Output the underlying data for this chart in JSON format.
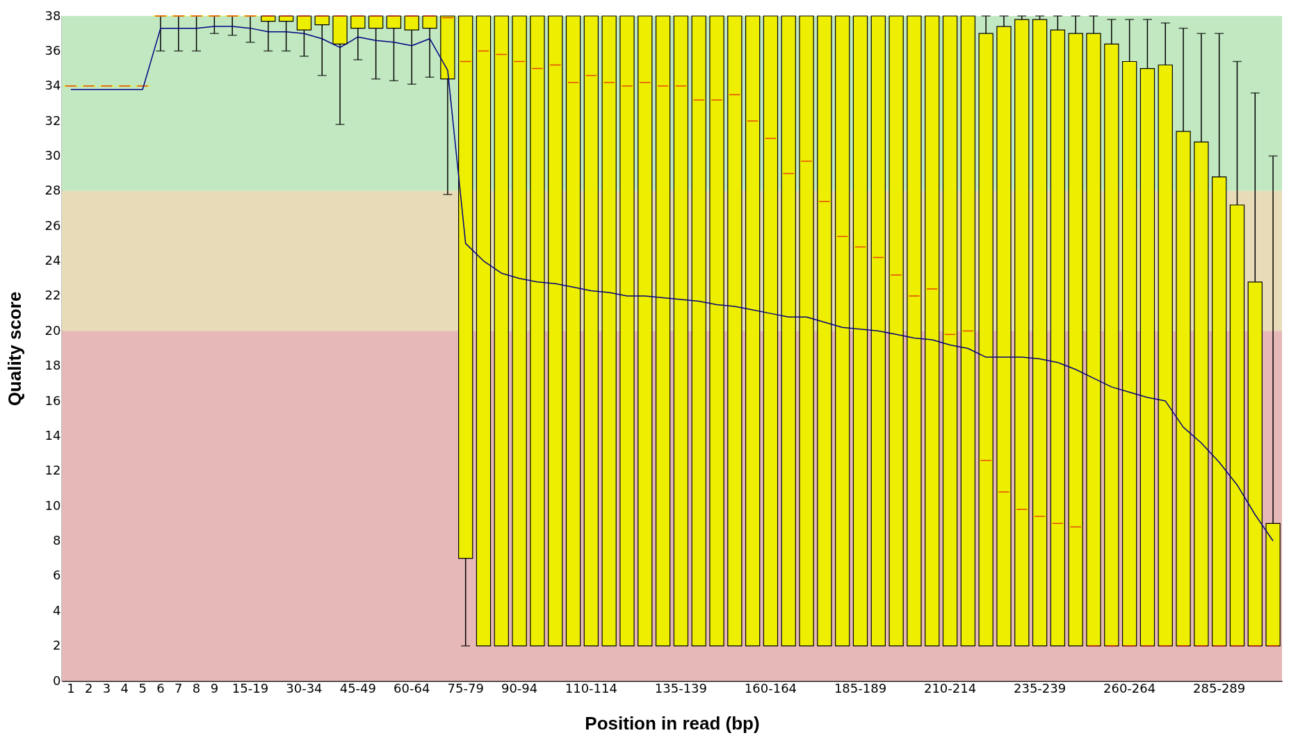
{
  "chart_data": {
    "type": "box",
    "xlabel": "Position in read (bp)",
    "ylabel": "Quality score",
    "categories": [
      "1",
      "2",
      "3",
      "4",
      "5",
      "6",
      "7",
      "8",
      "9",
      null,
      "15-19",
      null,
      null,
      "30-34",
      null,
      null,
      "45-49",
      null,
      null,
      "60-64",
      null,
      null,
      "75-79",
      null,
      null,
      "90-94",
      null,
      null,
      null,
      "110-114",
      null,
      null,
      null,
      null,
      "135-139",
      null,
      null,
      null,
      null,
      "160-164",
      null,
      null,
      null,
      null,
      "185-189",
      null,
      null,
      null,
      null,
      "210-214",
      null,
      null,
      null,
      null,
      "235-239",
      null,
      null,
      null,
      null,
      "260-264",
      null,
      null,
      null,
      null,
      "285-289",
      null,
      null,
      null
    ],
    "ylim": [
      0,
      38
    ],
    "yticks": [
      0,
      2,
      4,
      6,
      8,
      10,
      12,
      14,
      16,
      18,
      20,
      22,
      24,
      26,
      28,
      30,
      32,
      34,
      36,
      38
    ],
    "bands": [
      {
        "axis": "y",
        "from": 28,
        "to": 38,
        "color": "#c2e8c2"
      },
      {
        "axis": "y",
        "from": 20,
        "to": 28,
        "color": "#e8dcb8"
      },
      {
        "axis": "y",
        "from": 0,
        "to": 20,
        "color": "#e6b8b8"
      }
    ],
    "series": [
      {
        "type": "box",
        "color": "#eeee00",
        "boxes": [
          {
            "low": 34,
            "q1": 34,
            "median": 34,
            "q3": 34,
            "high": 34
          },
          {
            "low": 34,
            "q1": 34,
            "median": 34,
            "q3": 34,
            "high": 34
          },
          {
            "low": 34,
            "q1": 34,
            "median": 34,
            "q3": 34,
            "high": 34
          },
          {
            "low": 34,
            "q1": 34,
            "median": 34,
            "q3": 34,
            "high": 34
          },
          {
            "low": 34,
            "q1": 34,
            "median": 34,
            "q3": 34,
            "high": 34
          },
          {
            "low": 36,
            "q1": 38,
            "median": 38,
            "q3": 38,
            "high": 38
          },
          {
            "low": 36,
            "q1": 38,
            "median": 38,
            "q3": 38,
            "high": 38
          },
          {
            "low": 36,
            "q1": 38,
            "median": 38,
            "q3": 38,
            "high": 38
          },
          {
            "low": 37,
            "q1": 38,
            "median": 38,
            "q3": 38,
            "high": 38
          },
          {
            "low": 36.9,
            "q1": 38,
            "median": 38,
            "q3": 38,
            "high": 38
          },
          {
            "low": 36.5,
            "q1": 38,
            "median": 38,
            "q3": 38,
            "high": 38
          },
          {
            "low": 36,
            "q1": 37.7,
            "median": 38,
            "q3": 38,
            "high": 38
          },
          {
            "low": 36,
            "q1": 37.7,
            "median": 38,
            "q3": 38,
            "high": 38
          },
          {
            "low": 35.7,
            "q1": 37.2,
            "median": 38,
            "q3": 38,
            "high": 38
          },
          {
            "low": 34.6,
            "q1": 37.5,
            "median": 38,
            "q3": 38,
            "high": 38
          },
          {
            "low": 31.8,
            "q1": 36.4,
            "median": 38,
            "q3": 38,
            "high": 38
          },
          {
            "low": 35.5,
            "q1": 37.3,
            "median": 38,
            "q3": 38,
            "high": 38
          },
          {
            "low": 34.4,
            "q1": 37.3,
            "median": 38,
            "q3": 38,
            "high": 38
          },
          {
            "low": 34.3,
            "q1": 37.3,
            "median": 38,
            "q3": 38,
            "high": 38
          },
          {
            "low": 34.1,
            "q1": 37.2,
            "median": 38,
            "q3": 38,
            "high": 38
          },
          {
            "low": 34.5,
            "q1": 37.3,
            "median": 38,
            "q3": 38,
            "high": 38
          },
          {
            "low": 27.8,
            "q1": 34.4,
            "median": 37.9,
            "q3": 38,
            "high": 38
          },
          {
            "low": 2,
            "q1": 7,
            "median": 35.4,
            "q3": 38,
            "high": 38
          },
          {
            "low": 2,
            "q1": 2,
            "median": 36.0,
            "q3": 38,
            "high": 38
          },
          {
            "low": 2,
            "q1": 2,
            "median": 35.8,
            "q3": 38,
            "high": 38
          },
          {
            "low": 2,
            "q1": 2,
            "median": 35.4,
            "q3": 38,
            "high": 38
          },
          {
            "low": 2,
            "q1": 2,
            "median": 35.0,
            "q3": 38,
            "high": 38
          },
          {
            "low": 2,
            "q1": 2,
            "median": 35.2,
            "q3": 38,
            "high": 38
          },
          {
            "low": 2,
            "q1": 2,
            "median": 34.2,
            "q3": 38,
            "high": 38
          },
          {
            "low": 2,
            "q1": 2,
            "median": 34.6,
            "q3": 38,
            "high": 38
          },
          {
            "low": 2,
            "q1": 2,
            "median": 34.2,
            "q3": 38,
            "high": 38
          },
          {
            "low": 2,
            "q1": 2,
            "median": 34.0,
            "q3": 38,
            "high": 38
          },
          {
            "low": 2,
            "q1": 2,
            "median": 34.2,
            "q3": 38,
            "high": 38
          },
          {
            "low": 2,
            "q1": 2,
            "median": 34.0,
            "q3": 38,
            "high": 38
          },
          {
            "low": 2,
            "q1": 2,
            "median": 34.0,
            "q3": 38,
            "high": 38
          },
          {
            "low": 2,
            "q1": 2,
            "median": 33.2,
            "q3": 38,
            "high": 38
          },
          {
            "low": 2,
            "q1": 2,
            "median": 33.2,
            "q3": 38,
            "high": 38
          },
          {
            "low": 2,
            "q1": 2,
            "median": 33.5,
            "q3": 38,
            "high": 38
          },
          {
            "low": 2,
            "q1": 2,
            "median": 32.0,
            "q3": 38,
            "high": 38
          },
          {
            "low": 2,
            "q1": 2,
            "median": 31.0,
            "q3": 38,
            "high": 38
          },
          {
            "low": 2,
            "q1": 2,
            "median": 29.0,
            "q3": 38,
            "high": 38
          },
          {
            "low": 2,
            "q1": 2,
            "median": 29.7,
            "q3": 38,
            "high": 38
          },
          {
            "low": 2,
            "q1": 2,
            "median": 27.4,
            "q3": 38,
            "high": 38
          },
          {
            "low": 2,
            "q1": 2,
            "median": 25.4,
            "q3": 38,
            "high": 38
          },
          {
            "low": 2,
            "q1": 2,
            "median": 24.8,
            "q3": 38,
            "high": 38
          },
          {
            "low": 2,
            "q1": 2,
            "median": 24.2,
            "q3": 38,
            "high": 38
          },
          {
            "low": 2,
            "q1": 2,
            "median": 23.2,
            "q3": 38,
            "high": 38
          },
          {
            "low": 2,
            "q1": 2,
            "median": 22.0,
            "q3": 38,
            "high": 38
          },
          {
            "low": 2,
            "q1": 2,
            "median": 22.4,
            "q3": 38,
            "high": 38
          },
          {
            "low": 2,
            "q1": 2,
            "median": 19.8,
            "q3": 38,
            "high": 38
          },
          {
            "low": 2,
            "q1": 2,
            "median": 20.0,
            "q3": 38,
            "high": 38
          },
          {
            "low": 2,
            "q1": 2,
            "median": 12.6,
            "q3": 37.0,
            "high": 38
          },
          {
            "low": 2,
            "q1": 2,
            "median": 10.8,
            "q3": 37.4,
            "high": 38
          },
          {
            "low": 2,
            "q1": 2,
            "median": 9.8,
            "q3": 37.8,
            "high": 38
          },
          {
            "low": 2,
            "q1": 2,
            "median": 9.4,
            "q3": 37.8,
            "high": 38
          },
          {
            "low": 2,
            "q1": 2,
            "median": 9.0,
            "q3": 37.2,
            "high": 38
          },
          {
            "low": 2,
            "q1": 2,
            "median": 8.8,
            "q3": 37.0,
            "high": 38
          },
          {
            "low": 2,
            "q1": 2,
            "median": 2,
            "q3": 37.0,
            "high": 38
          },
          {
            "low": 2,
            "q1": 2,
            "median": 2,
            "q3": 36.4,
            "high": 37.8
          },
          {
            "low": 2,
            "q1": 2,
            "median": 2,
            "q3": 35.4,
            "high": 37.8
          },
          {
            "low": 2,
            "q1": 2,
            "median": 2,
            "q3": 35.0,
            "high": 37.8
          },
          {
            "low": 2,
            "q1": 2,
            "median": 2,
            "q3": 35.2,
            "high": 37.6
          },
          {
            "low": 2,
            "q1": 2,
            "median": 2,
            "q3": 31.4,
            "high": 37.3
          },
          {
            "low": 2,
            "q1": 2,
            "median": 2,
            "q3": 30.8,
            "high": 37.0
          },
          {
            "low": 2,
            "q1": 2,
            "median": 2,
            "q3": 28.8,
            "high": 37.0
          },
          {
            "low": 2,
            "q1": 2,
            "median": 2,
            "q3": 27.2,
            "high": 35.4
          },
          {
            "low": 2,
            "q1": 2,
            "median": 2,
            "q3": 22.8,
            "high": 33.6
          },
          {
            "low": 2,
            "q1": 2,
            "median": 2,
            "q3": 9.0,
            "high": 30.0
          }
        ]
      },
      {
        "type": "line",
        "color": "#000080",
        "values": [
          33.8,
          33.8,
          33.8,
          33.8,
          33.8,
          37.3,
          37.3,
          37.3,
          37.4,
          37.4,
          37.3,
          37.1,
          37.1,
          37.0,
          36.7,
          36.2,
          36.8,
          36.6,
          36.5,
          36.3,
          36.7,
          34.9,
          25.0,
          24.0,
          23.3,
          23.0,
          22.8,
          22.7,
          22.5,
          22.3,
          22.2,
          22.0,
          22.0,
          21.9,
          21.8,
          21.7,
          21.5,
          21.4,
          21.2,
          21.0,
          20.8,
          20.8,
          20.5,
          20.2,
          20.1,
          20.0,
          19.8,
          19.6,
          19.5,
          19.2,
          19.0,
          18.5,
          18.5,
          18.5,
          18.4,
          18.2,
          17.8,
          17.3,
          16.8,
          16.5,
          16.2,
          16.0,
          14.5,
          13.6,
          12.5,
          11.2,
          9.5,
          8.0
        ]
      }
    ]
  }
}
